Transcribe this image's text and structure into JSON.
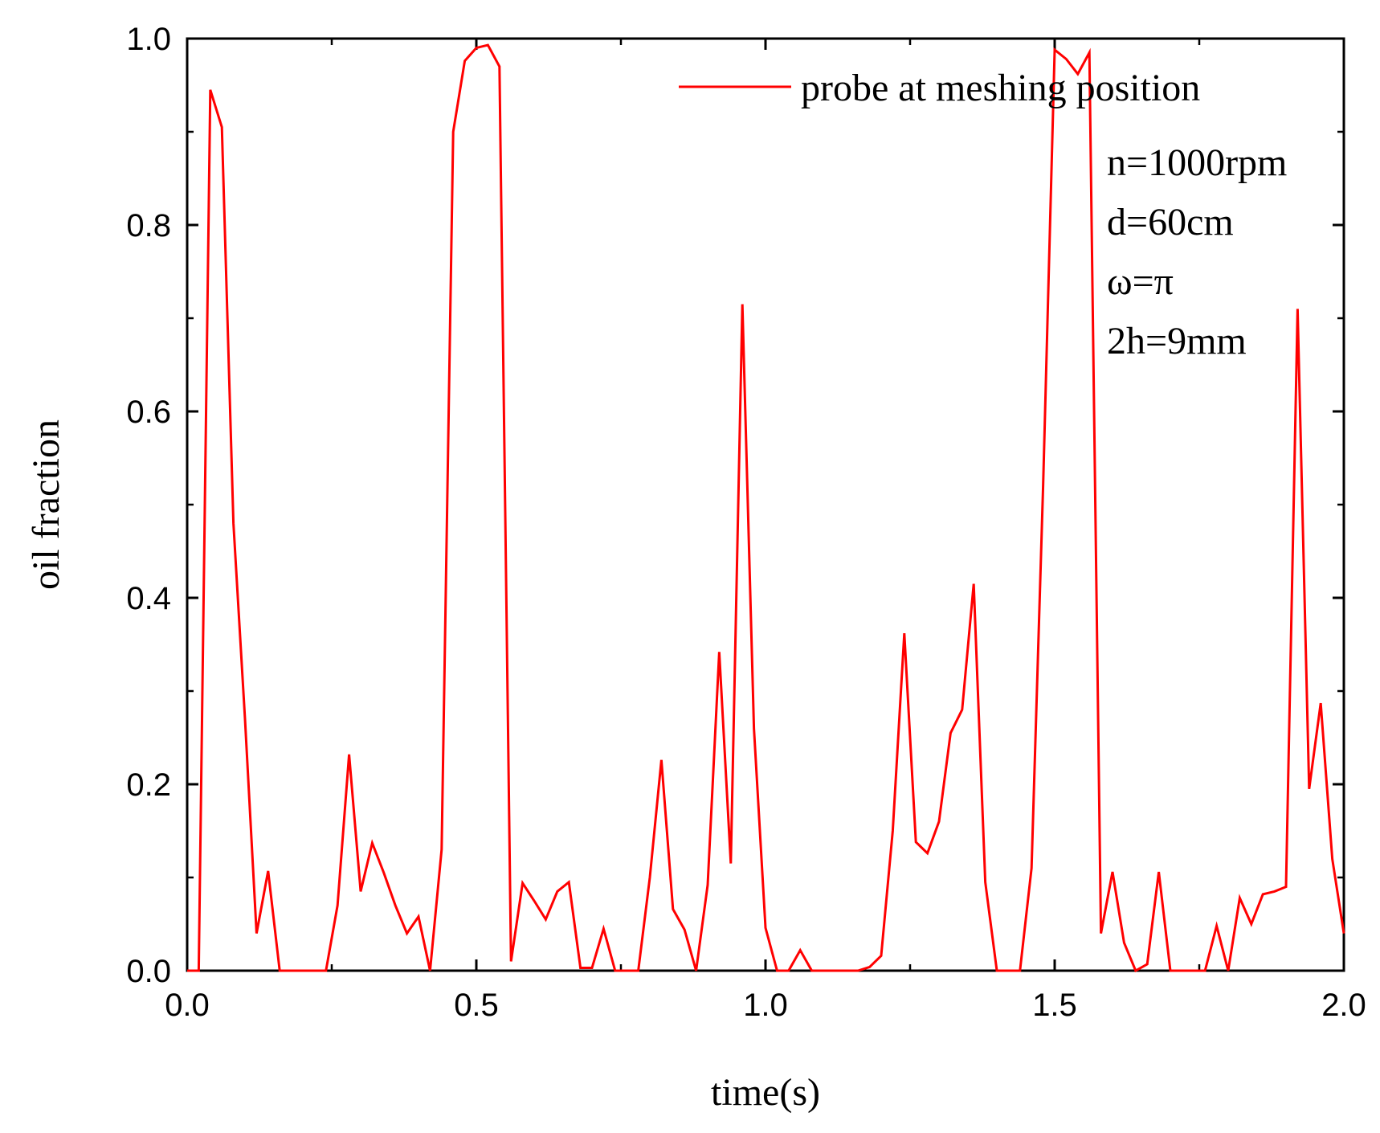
{
  "chart_data": {
    "type": "line",
    "title": "",
    "xlabel": "time(s)",
    "ylabel": "oil fraction",
    "xlim": [
      0.0,
      2.0
    ],
    "ylim": [
      0.0,
      1.0
    ],
    "x_ticks": [
      0.0,
      0.5,
      1.0,
      1.5,
      2.0
    ],
    "x_tick_labels": [
      "0.0",
      "0.5",
      "1.0",
      "1.5",
      "2.0"
    ],
    "y_ticks": [
      0.0,
      0.2,
      0.4,
      0.6,
      0.8,
      1.0
    ],
    "y_tick_labels": [
      "0.0",
      "0.2",
      "0.4",
      "0.6",
      "0.8",
      "1.0"
    ],
    "grid": false,
    "legend_position": "top-right",
    "series": [
      {
        "name": "probe at meshing position",
        "color": "#ff0000",
        "x": [
          0.0,
          0.02,
          0.04,
          0.06,
          0.08,
          0.1,
          0.12,
          0.14,
          0.16,
          0.18,
          0.2,
          0.22,
          0.24,
          0.26,
          0.28,
          0.3,
          0.32,
          0.34,
          0.36,
          0.38,
          0.4,
          0.42,
          0.44,
          0.46,
          0.48,
          0.5,
          0.52,
          0.54,
          0.56,
          0.58,
          0.6,
          0.62,
          0.64,
          0.66,
          0.68,
          0.7,
          0.72,
          0.74,
          0.76,
          0.78,
          0.8,
          0.82,
          0.84,
          0.86,
          0.88,
          0.9,
          0.92,
          0.94,
          0.96,
          0.98,
          1.0,
          1.02,
          1.04,
          1.06,
          1.08,
          1.1,
          1.12,
          1.14,
          1.16,
          1.18,
          1.2,
          1.22,
          1.24,
          1.26,
          1.28,
          1.3,
          1.32,
          1.34,
          1.36,
          1.38,
          1.4,
          1.42,
          1.44,
          1.46,
          1.48,
          1.5,
          1.52,
          1.54,
          1.56,
          1.58,
          1.6,
          1.62,
          1.64,
          1.66,
          1.68,
          1.7,
          1.72,
          1.74,
          1.76,
          1.78,
          1.8,
          1.82,
          1.84,
          1.86,
          1.88,
          1.9,
          1.92,
          1.94,
          1.96,
          1.98,
          2.0
        ],
        "values": [
          0.0,
          0.0,
          0.945,
          0.905,
          0.48,
          0.27,
          0.04,
          0.107,
          0.0,
          0.0,
          0.0,
          0.0,
          0.0,
          0.07,
          0.232,
          0.085,
          0.137,
          0.105,
          0.07,
          0.04,
          0.058,
          0.0,
          0.13,
          0.9,
          0.976,
          0.99,
          0.993,
          0.97,
          0.01,
          0.094,
          0.075,
          0.055,
          0.085,
          0.095,
          0.003,
          0.003,
          0.045,
          0.0,
          0.0,
          0.0,
          0.1,
          0.226,
          0.066,
          0.044,
          0.0,
          0.092,
          0.342,
          0.115,
          0.715,
          0.26,
          0.046,
          0.0,
          0.0,
          0.022,
          0.0,
          0.0,
          0.0,
          0.0,
          0.0,
          0.004,
          0.016,
          0.15,
          0.362,
          0.138,
          0.126,
          0.16,
          0.255,
          0.28,
          0.415,
          0.095,
          0.0,
          0.0,
          0.0,
          0.11,
          0.52,
          0.988,
          0.978,
          0.962,
          0.985,
          0.04,
          0.106,
          0.03,
          0.0,
          0.007,
          0.106,
          0.0,
          0.0,
          0.0,
          0.0,
          0.048,
          0.0,
          0.078,
          0.05,
          0.082,
          0.085,
          0.09,
          0.71,
          0.195,
          0.287,
          0.12,
          0.04
        ]
      }
    ],
    "annotations": [
      "n=1000rpm",
      "d=60cm",
      "ω=π",
      "2h=9mm"
    ]
  }
}
